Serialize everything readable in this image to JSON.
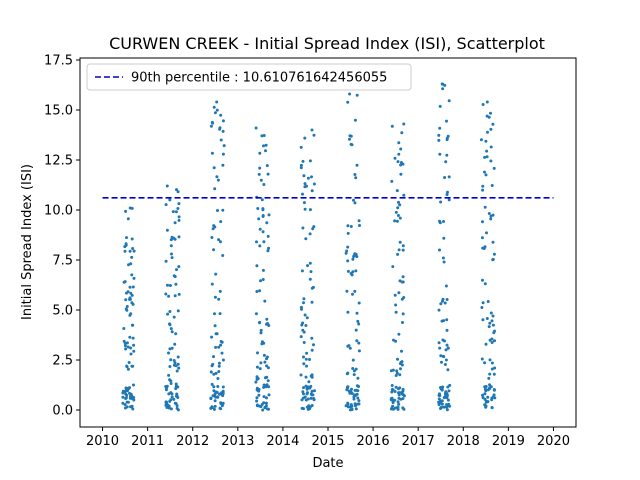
{
  "chart_data": {
    "type": "scatter",
    "title": "CURWEN CREEK - Initial Spread Index (ISI), Scatterplot",
    "xlabel": "Date",
    "ylabel": "Initial Spread Index (ISI)",
    "xlim": [
      2009.5,
      2020.5
    ],
    "ylim": [
      -0.85,
      17.6
    ],
    "x_ticks": [
      "2010",
      "2011",
      "2012",
      "2013",
      "2014",
      "2015",
      "2016",
      "2017",
      "2018",
      "2019",
      "2020"
    ],
    "y_ticks": [
      "0.0",
      "2.5",
      "5.0",
      "7.5",
      "10.0",
      "12.5",
      "15.0",
      "17.5"
    ],
    "legend_position": "upper left",
    "grid": false,
    "colors": {
      "points": "#1f77b4",
      "reference_line": "#0000cc"
    },
    "reference_line": {
      "label": "90th percentile : 10.610761642456055",
      "y": 10.610761642456055,
      "style": "dashed"
    },
    "series": [
      {
        "season_bands": [
          [
            2010.45,
            2010.7
          ],
          [
            2011.4,
            2011.7
          ],
          [
            2012.4,
            2012.7
          ],
          [
            2013.4,
            2013.7
          ],
          [
            2014.4,
            2014.7
          ],
          [
            2015.4,
            2015.7
          ],
          [
            2016.4,
            2016.7
          ],
          [
            2017.45,
            2017.7
          ],
          [
            2018.4,
            2018.7
          ]
        ],
        "approx_max_per_season": [
          10.1,
          11.2,
          15.4,
          14.1,
          14.0,
          15.8,
          14.3,
          16.3,
          15.4
        ]
      }
    ]
  }
}
